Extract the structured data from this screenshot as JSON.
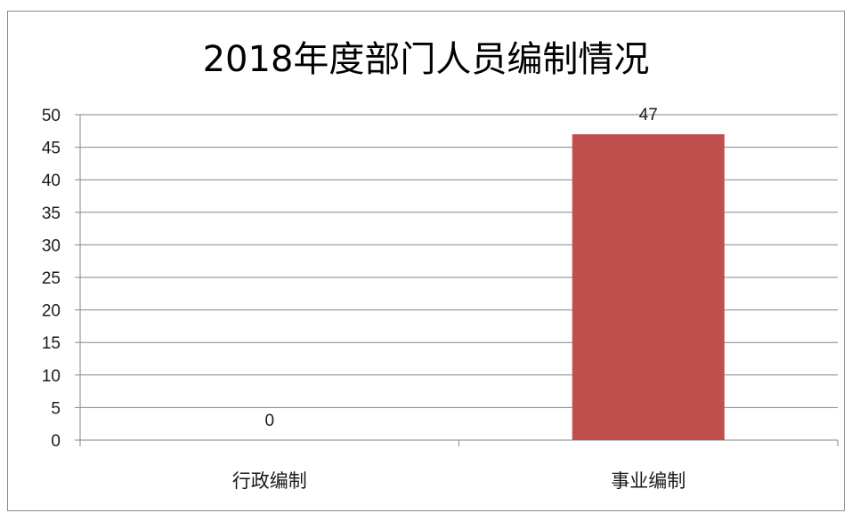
{
  "chart_data": {
    "type": "bar",
    "title": "2018年度部门人员编制情况",
    "categories": [
      "行政编制",
      "事业编制"
    ],
    "values": [
      0,
      47
    ],
    "data_labels": [
      "0",
      "47"
    ],
    "xlabel": "",
    "ylabel": "",
    "ylim": [
      0,
      50
    ],
    "yticks": [
      0,
      5,
      10,
      15,
      20,
      25,
      30,
      35,
      40,
      45,
      50
    ],
    "grid": true,
    "legend": "none",
    "bar_color": "#c0504d",
    "grid_color": "#868686"
  }
}
